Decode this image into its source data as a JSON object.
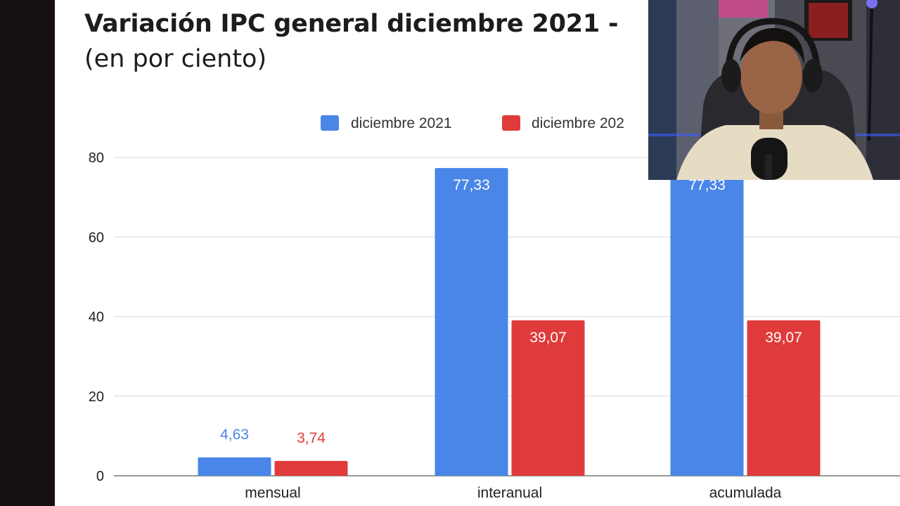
{
  "chart_data": {
    "type": "bar",
    "title": "Variación IPC general diciembre 2021 -",
    "subtitle": "(en por ciento)",
    "categories": [
      "mensual",
      "interanual",
      "acumulada"
    ],
    "series": [
      {
        "name": "diciembre 2021",
        "color": "#4a86e8",
        "values": [
          4.63,
          77.33,
          77.33
        ],
        "labels": [
          "4,63",
          "77,33",
          "77,33"
        ]
      },
      {
        "name": "diciembre 202",
        "color": "#e03b3b",
        "values": [
          3.74,
          39.07,
          39.07
        ],
        "labels": [
          "3,74",
          "39,07",
          "39,07"
        ]
      }
    ],
    "ylim": [
      0,
      80
    ],
    "yticks": [
      0,
      20,
      40,
      60,
      80
    ],
    "grid": true,
    "legend": "top"
  },
  "webcam": {
    "subject": "webcam-overlay-streamer"
  }
}
